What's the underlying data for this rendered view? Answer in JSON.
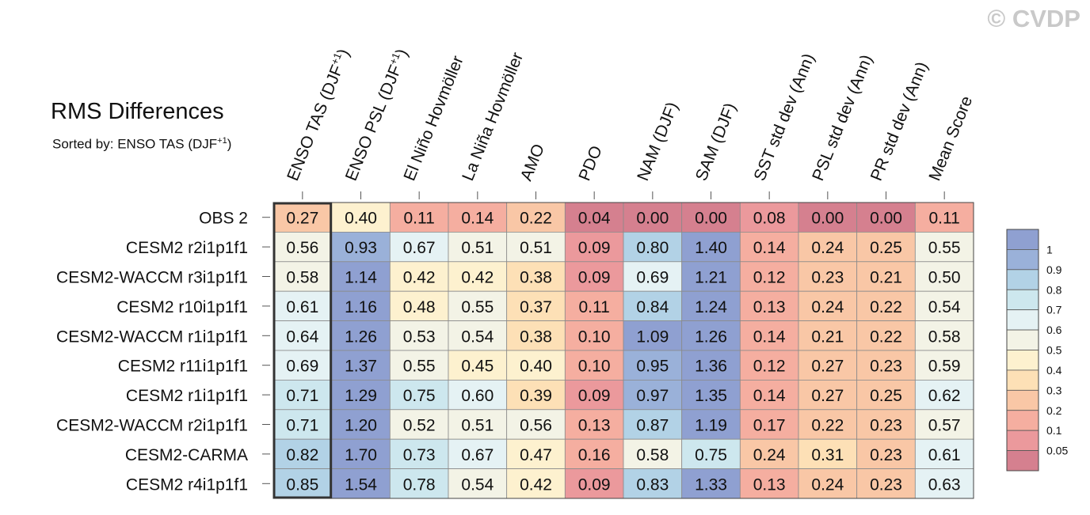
{
  "watermark": "© CVDP",
  "title": "RMS Differences",
  "subtitle": {
    "prefix": "Sorted by: ENSO TAS (DJF",
    "superscript": "+1",
    "suffix": ")"
  },
  "chart_data": {
    "type": "heatmap",
    "title": "RMS Differences",
    "sorted_by": "ENSO TAS (DJF+1)",
    "columns": [
      {
        "label": "ENSO TAS (DJF",
        "sup": "+1",
        "tail": ")"
      },
      {
        "label": "ENSO PSL (DJF",
        "sup": "+1",
        "tail": ")"
      },
      {
        "label": "El Niño Hovmöller"
      },
      {
        "label": "La Niña Hovmöller"
      },
      {
        "label": "AMO"
      },
      {
        "label": "PDO"
      },
      {
        "label": "NAM (DJF)"
      },
      {
        "label": "SAM (DJF)"
      },
      {
        "label": "SST std dev (Ann)"
      },
      {
        "label": "PSL std dev (Ann)"
      },
      {
        "label": "PR std dev (Ann)"
      },
      {
        "label": "Mean Score"
      }
    ],
    "rows": [
      "OBS 2",
      "CESM2 r2i1p1f1",
      "CESM2-WACCM r3i1p1f1",
      "CESM2 r10i1p1f1",
      "CESM2-WACCM r1i1p1f1",
      "CESM2 r11i1p1f1",
      "CESM2 r1i1p1f1",
      "CESM2-WACCM r2i1p1f1",
      "CESM2-CARMA",
      "CESM2 r4i1p1f1"
    ],
    "values": [
      [
        "0.27",
        "0.40",
        "0.11",
        "0.14",
        "0.22",
        "0.04",
        "0.00",
        "0.00",
        "0.08",
        "0.00",
        "0.00",
        "0.11"
      ],
      [
        "0.56",
        "0.93",
        "0.67",
        "0.51",
        "0.51",
        "0.09",
        "0.80",
        "1.40",
        "0.14",
        "0.24",
        "0.25",
        "0.55"
      ],
      [
        "0.58",
        "1.14",
        "0.42",
        "0.42",
        "0.38",
        "0.09",
        "0.69",
        "1.21",
        "0.12",
        "0.23",
        "0.21",
        "0.50"
      ],
      [
        "0.61",
        "1.16",
        "0.48",
        "0.55",
        "0.37",
        "0.11",
        "0.84",
        "1.24",
        "0.13",
        "0.24",
        "0.22",
        "0.54"
      ],
      [
        "0.64",
        "1.26",
        "0.53",
        "0.54",
        "0.38",
        "0.10",
        "1.09",
        "1.26",
        "0.14",
        "0.21",
        "0.22",
        "0.58"
      ],
      [
        "0.69",
        "1.37",
        "0.55",
        "0.45",
        "0.40",
        "0.10",
        "0.95",
        "1.36",
        "0.12",
        "0.27",
        "0.23",
        "0.59"
      ],
      [
        "0.71",
        "1.29",
        "0.75",
        "0.60",
        "0.39",
        "0.09",
        "0.97",
        "1.35",
        "0.14",
        "0.27",
        "0.25",
        "0.62"
      ],
      [
        "0.71",
        "1.20",
        "0.52",
        "0.51",
        "0.56",
        "0.13",
        "0.87",
        "1.19",
        "0.17",
        "0.22",
        "0.23",
        "0.57"
      ],
      [
        "0.82",
        "1.70",
        "0.73",
        "0.67",
        "0.47",
        "0.16",
        "0.58",
        "0.75",
        "0.24",
        "0.31",
        "0.23",
        "0.61"
      ],
      [
        "0.85",
        "1.54",
        "0.78",
        "0.54",
        "0.42",
        "0.09",
        "0.83",
        "1.33",
        "0.13",
        "0.24",
        "0.23",
        "0.63"
      ]
    ],
    "highlight_column": 0,
    "colorbar": {
      "labels": [
        "1",
        "0.9",
        "0.8",
        "0.7",
        "0.6",
        "0.5",
        "0.4",
        "0.3",
        "0.2",
        "0.1",
        "0.05"
      ],
      "levels": [
        0.05,
        0.1,
        0.2,
        0.3,
        0.4,
        0.5,
        0.6,
        0.7,
        0.8,
        0.9,
        1.0
      ],
      "colors": [
        "#d5808f",
        "#eb999c",
        "#f5aea0",
        "#f9c7a6",
        "#fde0b6",
        "#fdf1cf",
        "#f3f3e6",
        "#e5f2f4",
        "#cde7ee",
        "#b2d2e6",
        "#9ab1d9",
        "#8fa0d1"
      ]
    }
  }
}
